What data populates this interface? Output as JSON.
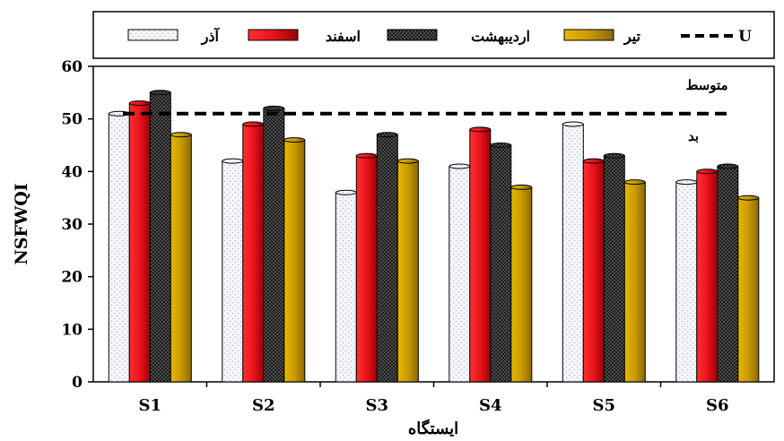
{
  "chart_data": {
    "type": "bar",
    "xlabel": "ایستگاه",
    "ylabel": "NSFWQI",
    "ylim": [
      0,
      60
    ],
    "yticks": [
      "0",
      "10",
      "20",
      "30",
      "40",
      "50",
      "60"
    ],
    "grid": false,
    "legend_position": "top",
    "categories": [
      "S1",
      "S2",
      "S3",
      "S4",
      "S5",
      "S6"
    ],
    "series": [
      {
        "name": "آذر",
        "values": [
          51,
          42,
          36,
          41,
          49,
          38
        ],
        "color": "#f2f4f8",
        "pattern": "dots-light"
      },
      {
        "name": "اسفند",
        "values": [
          53,
          49,
          43,
          48,
          42,
          40
        ],
        "color": "#e8141c",
        "pattern": "solid"
      },
      {
        "name": "اردیبهشت",
        "values": [
          55,
          52,
          47,
          45,
          43,
          41
        ],
        "color": "#1a1a1a",
        "pattern": "dots-dark"
      },
      {
        "name": "تیر",
        "values": [
          47,
          46,
          42,
          37,
          38,
          35
        ],
        "color": "#c99a00",
        "pattern": "solid"
      }
    ],
    "reference_line": {
      "name": "U",
      "value": 51,
      "style": "dashed",
      "color": "#000000"
    },
    "annotations": [
      {
        "text": "متوسط",
        "region": "above-line"
      },
      {
        "text": "بد",
        "region": "below-line"
      }
    ]
  }
}
